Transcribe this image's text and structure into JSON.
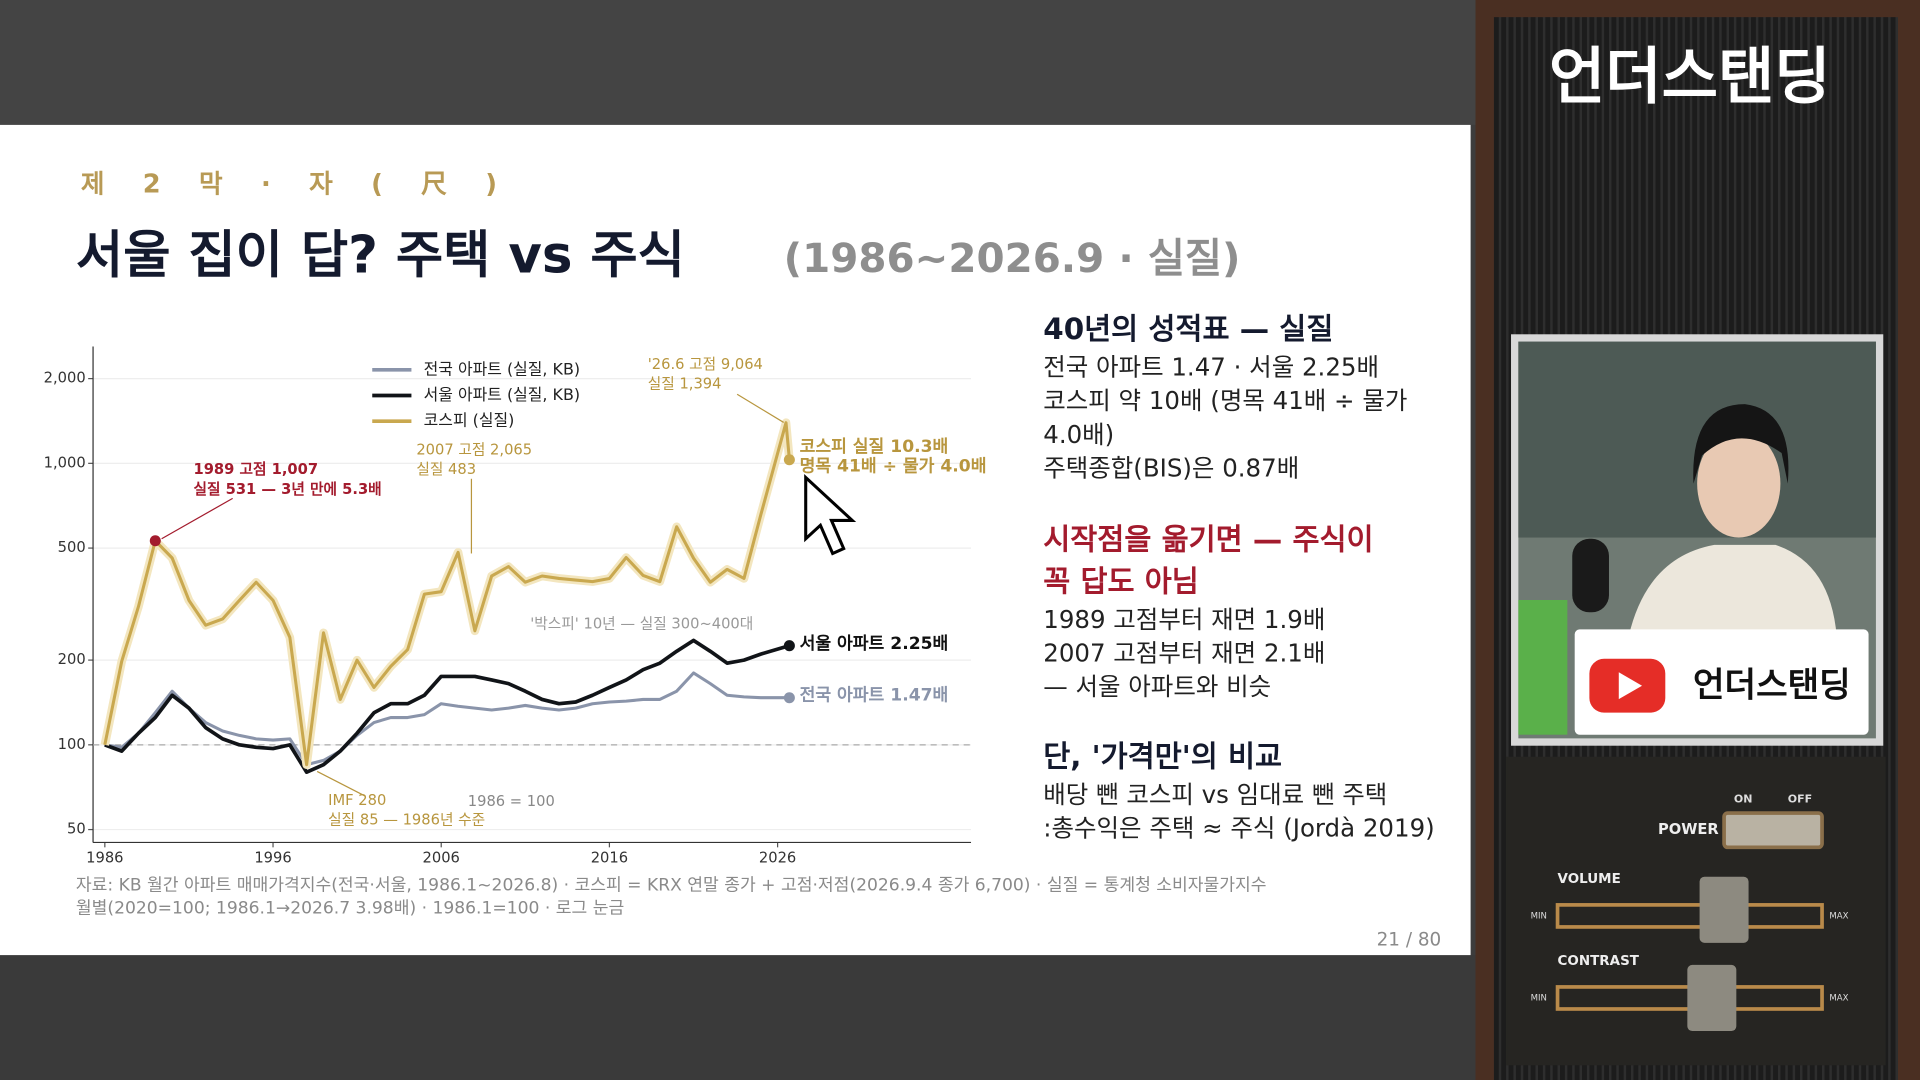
{
  "broadcast": {
    "brand": "언더스탠딩",
    "card_brand": "언더스탠딩",
    "panel": {
      "power": "POWER",
      "on": "ON",
      "off": "OFF",
      "volume": "VOLUME",
      "contrast": "CONTRAST",
      "min": "MIN",
      "max": "MAX"
    }
  },
  "slide": {
    "kicker": "제 2 막 · 자 ( 尺 )",
    "title": "서울 집이 답? 주택 vs 주식",
    "subtitle": "(1986~2026.9 · 실질)",
    "summary": [
      {
        "heading": [
          "40년의 성적표 — 실질"
        ],
        "lines": [
          "전국 아파트 1.47 · 서울 2.25배",
          "코스피 약 10배 (명목 41배 ÷ 물가",
          "4.0배)",
          "주택종합(BIS)은 0.87배"
        ]
      },
      {
        "heading": [
          "시작점을 옮기면 — 주식이",
          "꼭 답도 아님"
        ],
        "lines": [
          "1989 고점부터 재면 1.9배",
          "2007 고점부터 재면 2.1배",
          "— 서울 아파트와 비슷"
        ]
      },
      {
        "heading": [
          "단, '가격만'의 비교"
        ],
        "lines": [
          "배당 뺀 코스피 vs 임대료 뺀 주택",
          ":총수익은 주택 ≈ 주식 (Jordà 2019)"
        ]
      }
    ],
    "source": [
      "자료: KB 월간 아파트 매매가격지수(전국·서울, 1986.1~2026.8) · 코스피 = KRX 연말 종가 + 고점·저점(2026.9.4 종가 6,700) · 실질 = 통계청 소비자물가지수",
      "월별(2020=100; 1986.1→2026.7 3.98배) · 1986.1=100 · 로그 눈금"
    ],
    "page": "21 / 80"
  },
  "chart_data": {
    "type": "line",
    "log_y": true,
    "grid": true,
    "legend": "top-center",
    "xlim": [
      1985.3,
      2037.5
    ],
    "xticks": [
      1986,
      1996,
      2006,
      2016,
      2026
    ],
    "ylim": [
      45,
      2600
    ],
    "yticks": [
      50,
      100,
      200,
      500,
      {
        "value": 1000,
        "label": "1,000"
      },
      {
        "value": 2000,
        "label": "2,000"
      }
    ],
    "baseline": {
      "value": 100,
      "label": "1986 = 100"
    },
    "series": [
      {
        "name": "전국 아파트 (실질, KB)",
        "color": "#8a94aa",
        "end_label": "전국 아파트 1.47배",
        "x": [
          1986,
          1987,
          1988,
          1989,
          1990,
          1991,
          1992,
          1993,
          1994,
          1995,
          1996,
          1997,
          1998,
          1999,
          2000,
          2001,
          2002,
          2003,
          2004,
          2005,
          2006,
          2007,
          2008,
          2009,
          2010,
          2011,
          2012,
          2013,
          2014,
          2015,
          2016,
          2017,
          2018,
          2019,
          2020,
          2021,
          2022,
          2023,
          2024,
          2025,
          2026.7
        ],
        "values": [
          100,
          98,
          110,
          130,
          155,
          135,
          120,
          112,
          108,
          105,
          104,
          105,
          85,
          88,
          95,
          108,
          120,
          125,
          125,
          128,
          140,
          137,
          135,
          133,
          135,
          138,
          135,
          133,
          135,
          140,
          142,
          143,
          145,
          145,
          155,
          180,
          165,
          150,
          148,
          147,
          147
        ]
      },
      {
        "name": "서울 아파트 (실질, KB)",
        "color": "#111418",
        "end_label": "서울 아파트 2.25배",
        "x": [
          1986,
          1987,
          1988,
          1989,
          1990,
          1991,
          1992,
          1993,
          1994,
          1995,
          1996,
          1997,
          1998,
          1999,
          2000,
          2001,
          2002,
          2003,
          2004,
          2005,
          2006,
          2007,
          2008,
          2009,
          2010,
          2011,
          2012,
          2013,
          2014,
          2015,
          2016,
          2017,
          2018,
          2019,
          2020,
          2021,
          2022,
          2023,
          2024,
          2025,
          2026.7
        ],
        "values": [
          100,
          95,
          110,
          125,
          150,
          135,
          115,
          105,
          100,
          98,
          97,
          100,
          80,
          85,
          95,
          110,
          130,
          140,
          140,
          150,
          175,
          175,
          175,
          170,
          165,
          155,
          145,
          140,
          142,
          150,
          160,
          170,
          185,
          195,
          215,
          235,
          215,
          195,
          200,
          210,
          225
        ]
      },
      {
        "name": "코스피 (실질)",
        "color": "#c9a84f",
        "x": [
          1986,
          1987,
          1988,
          1989,
          1990,
          1991,
          1992,
          1993,
          1994,
          1995,
          1996,
          1997,
          1998,
          1999,
          2000,
          2001,
          2002,
          2003,
          2004,
          2005,
          2006,
          2007,
          2008,
          2009,
          2010,
          2011,
          2012,
          2013,
          2014,
          2015,
          2016,
          2017,
          2018,
          2019,
          2020,
          2021,
          2022,
          2023,
          2024,
          2025,
          2026.5,
          2026.7
        ],
        "values": [
          100,
          198,
          310,
          531,
          461,
          326,
          266,
          280,
          326,
          378,
          326,
          241,
          85,
          250,
          145,
          200,
          160,
          190,
          218,
          343,
          350,
          483,
          254,
          398,
          430,
          378,
          398,
          390,
          385,
          380,
          390,
          463,
          400,
          380,
          595,
          460,
          378,
          420,
          390,
          656,
          1394,
          1030
        ]
      }
    ],
    "annotations": [
      {
        "lines": [
          "1989 고점 1,007",
          "실질 531 — 3년 만에 5.3배"
        ]
      },
      {
        "lines": [
          "2007 고점 2,065",
          "실질 483"
        ]
      },
      {
        "lines": [
          "'26.6 고점 9,064",
          "실질 1,394"
        ]
      },
      {
        "lines": [
          "코스피 실질 10.3배",
          "명목 41배 ÷ 물가 4.0배"
        ]
      },
      {
        "lines": [
          "'박스피' 10년 — 실질 300~400대"
        ]
      },
      {
        "lines": [
          "IMF 280",
          "실질 85 — 1986년 수준"
        ]
      }
    ]
  }
}
